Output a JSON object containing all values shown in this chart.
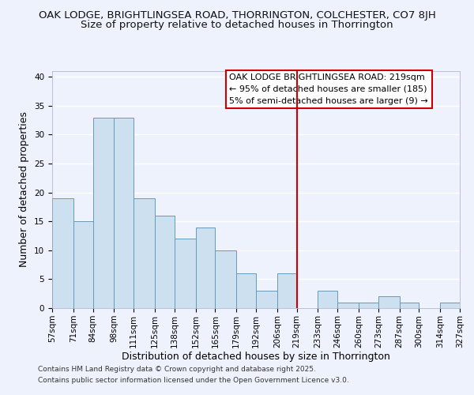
{
  "title": "OAK LODGE, BRIGHTLINGSEA ROAD, THORRINGTON, COLCHESTER, CO7 8JH",
  "subtitle": "Size of property relative to detached houses in Thorrington",
  "xlabel": "Distribution of detached houses by size in Thorrington",
  "ylabel": "Number of detached properties",
  "bin_edges": [
    57,
    71,
    84,
    98,
    111,
    125,
    138,
    152,
    165,
    179,
    192,
    206,
    219,
    233,
    246,
    260,
    273,
    287,
    300,
    314,
    327
  ],
  "bar_heights": [
    19,
    15,
    33,
    33,
    19,
    16,
    12,
    14,
    10,
    6,
    3,
    6,
    0,
    3,
    1,
    1,
    2,
    1,
    0,
    1
  ],
  "bar_color": "#cce0f0",
  "bar_edgecolor": "#6699bb",
  "vline_x": 219,
  "vline_color": "#cc0000",
  "ylim": [
    0,
    41
  ],
  "yticks": [
    0,
    5,
    10,
    15,
    20,
    25,
    30,
    35,
    40
  ],
  "background_color": "#eef2fc",
  "grid_color": "#ffffff",
  "legend_lines": [
    "OAK LODGE BRIGHTLINGSEA ROAD: 219sqm",
    "← 95% of detached houses are smaller (185)",
    "5% of semi-detached houses are larger (9) →"
  ],
  "footer_line1": "Contains HM Land Registry data © Crown copyright and database right 2025.",
  "footer_line2": "Contains public sector information licensed under the Open Government Licence v3.0.",
  "title_fontsize": 9.5,
  "subtitle_fontsize": 9.5,
  "axis_label_fontsize": 9,
  "tick_fontsize": 7.5,
  "legend_fontsize": 8,
  "footer_fontsize": 6.5
}
